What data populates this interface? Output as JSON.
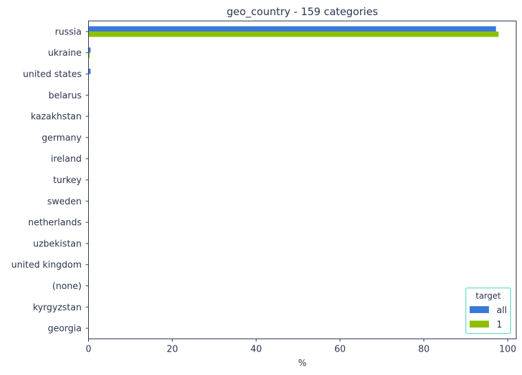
{
  "chart_data": {
    "type": "bar",
    "orientation": "horizontal",
    "title": "geo_country - 159 categories",
    "xlabel": "%",
    "ylabel": "",
    "xlim": [
      0,
      102
    ],
    "xticks": [
      0,
      20,
      40,
      60,
      80,
      100
    ],
    "categories": [
      "russia",
      "ukraine",
      "united states",
      "belarus",
      "kazakhstan",
      "germany",
      "ireland",
      "turkey",
      "sweden",
      "netherlands",
      "uzbekistan",
      "united kingdom",
      "(none)",
      "kyrgyzstan",
      "georgia"
    ],
    "series": [
      {
        "name": "all",
        "color": "#3a78d8",
        "values": [
          97.2,
          0.5,
          0.5,
          0.1,
          0.1,
          0.05,
          0.05,
          0.05,
          0.05,
          0.05,
          0.05,
          0.05,
          0.05,
          0.05,
          0.05
        ]
      },
      {
        "name": "1",
        "color": "#8cc000",
        "values": [
          97.8,
          0.3,
          0.1,
          0.05,
          0.05,
          0.05,
          0.05,
          0.05,
          0.05,
          0.05,
          0.05,
          0.05,
          0.05,
          0.05,
          0.05
        ]
      }
    ],
    "legend": {
      "title": "target",
      "position": "bottom-right",
      "border_color": "#48d6b8"
    },
    "grid": false,
    "axis_color": "#2b3550"
  }
}
